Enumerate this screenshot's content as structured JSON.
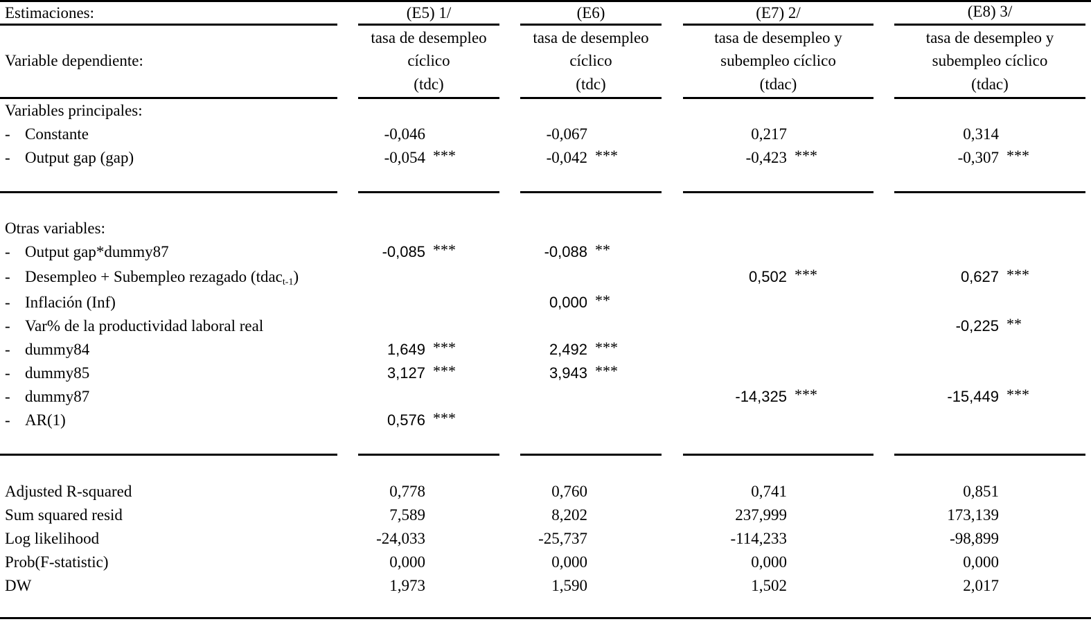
{
  "header": {
    "estimaciones_label": "Estimaciones:",
    "dep_var_label": "Variable dependiente:",
    "columns": [
      {
        "id": "(E5) 1/",
        "dep": [
          "tasa de desempleo",
          "cíclico",
          "(tdc)"
        ]
      },
      {
        "id": "(E6)",
        "dep": [
          "tasa de desempleo",
          "cíclico",
          "(tdc)"
        ]
      },
      {
        "id": "(E7) 2/",
        "dep": [
          "tasa de desempleo y",
          "subempleo cíclico",
          "(tdac)"
        ]
      },
      {
        "id": "(E8) 3/",
        "dep": [
          "tasa de desempleo y",
          "subempleo cíclico",
          "(tdac)"
        ]
      }
    ]
  },
  "main_section": {
    "title": "Variables principales:",
    "rows": [
      {
        "label": "Constante",
        "values": [
          "-0,046",
          "-0,067",
          "0,217",
          "0,314"
        ],
        "stars": [
          "",
          "",
          "",
          ""
        ]
      },
      {
        "label": "Output gap  (gap)",
        "values": [
          "-0,054",
          "-0,042",
          "-0,423",
          "-0,307"
        ],
        "stars": [
          "***",
          "***",
          "***",
          "***"
        ]
      }
    ]
  },
  "other_section": {
    "title": "Otras variables:",
    "rows": [
      {
        "label": "Output gap*dummy87",
        "values": [
          "-0,085",
          "-0,088",
          "",
          ""
        ],
        "stars": [
          "***",
          "**",
          "",
          ""
        ]
      },
      {
        "label": "Desempleo + Subempleo rezagado (tdac",
        "label_sub": "t-1",
        "label_suffix": ")",
        "values": [
          "",
          "",
          "0,502",
          "0,627"
        ],
        "stars": [
          "",
          "",
          "***",
          "***"
        ]
      },
      {
        "label": "Inflación (Inf)",
        "values": [
          "",
          "0,000",
          "",
          ""
        ],
        "stars": [
          "",
          "**",
          "",
          ""
        ]
      },
      {
        "label": "Var% de la productividad laboral real",
        "values": [
          "",
          "",
          "",
          "-0,225"
        ],
        "stars": [
          "",
          "",
          "",
          "**"
        ]
      },
      {
        "label": "dummy84",
        "values": [
          "1,649",
          "2,492",
          "",
          ""
        ],
        "stars": [
          "***",
          "***",
          "",
          ""
        ]
      },
      {
        "label": "dummy85",
        "values": [
          "3,127",
          "3,943",
          "",
          ""
        ],
        "stars": [
          "***",
          "***",
          "",
          ""
        ]
      },
      {
        "label": "dummy87",
        "values": [
          "",
          "",
          "-14,325",
          "-15,449"
        ],
        "stars": [
          "",
          "",
          "***",
          "***"
        ]
      },
      {
        "label": "AR(1)",
        "values": [
          "0,576",
          "",
          "",
          ""
        ],
        "stars": [
          "***",
          "",
          "",
          ""
        ]
      }
    ]
  },
  "stats": [
    {
      "label": "Adjusted R-squared",
      "values": [
        "0,778",
        "0,760",
        "0,741",
        "0,851"
      ]
    },
    {
      "label": "Sum squared resid",
      "values": [
        "7,589",
        "8,202",
        "237,999",
        "173,139"
      ]
    },
    {
      "label": "Log likelihood",
      "values": [
        "-24,033",
        "-25,737",
        "-114,233",
        "-98,899"
      ]
    },
    {
      "label": "Prob(F-statistic)",
      "values": [
        "0,000",
        "0,000",
        "0,000",
        "0,000"
      ]
    },
    {
      "label": "DW",
      "values": [
        "1,973",
        "1,590",
        "1,502",
        "2,017"
      ]
    }
  ]
}
